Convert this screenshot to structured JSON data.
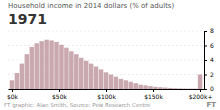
{
  "chart_data": {
    "type": "bar",
    "title": "Household income in 2014 dollars (% of adults)",
    "subtitle": "1971",
    "annotations": [
      "FT graphic: Alan Smith, Source: Pew Research Centre",
      "FT"
    ],
    "categories": [
      null,
      null,
      null,
      null,
      null,
      null,
      null,
      null,
      null,
      null,
      null,
      null,
      null,
      null,
      null,
      null,
      null,
      null,
      null,
      null,
      null,
      null,
      null,
      null,
      null,
      null,
      null,
      null,
      null,
      null,
      null,
      null,
      null,
      null,
      null,
      null,
      null,
      null,
      null
    ],
    "values": [
      1.2,
      2.2,
      3.5,
      4.8,
      5.8,
      6.3,
      6.6,
      6.8,
      6.7,
      6.5,
      6.1,
      5.7,
      5.2,
      4.8,
      4.3,
      3.9,
      3.5,
      3.1,
      2.7,
      2.3,
      2.0,
      1.7,
      1.4,
      1.2,
      1.0,
      0.8,
      0.6,
      0.5,
      0.4,
      0.3,
      0.25,
      0.2,
      0.15,
      0.1,
      0.08,
      0.06,
      0.05,
      0.05,
      2.0
    ],
    "color": "#c9a8b0",
    "xticks": [
      {
        "value": 0,
        "label": "$0k"
      },
      {
        "value": 9.5,
        "label": "$50k"
      },
      {
        "value": 19.0,
        "label": "$100k"
      },
      {
        "value": 28.5,
        "label": "$150k"
      },
      {
        "value": 38.0,
        "label": "$200k+"
      }
    ],
    "ylim": [
      0,
      8
    ],
    "yticks": [
      0,
      2,
      4,
      6,
      8
    ],
    "grid": true
  }
}
